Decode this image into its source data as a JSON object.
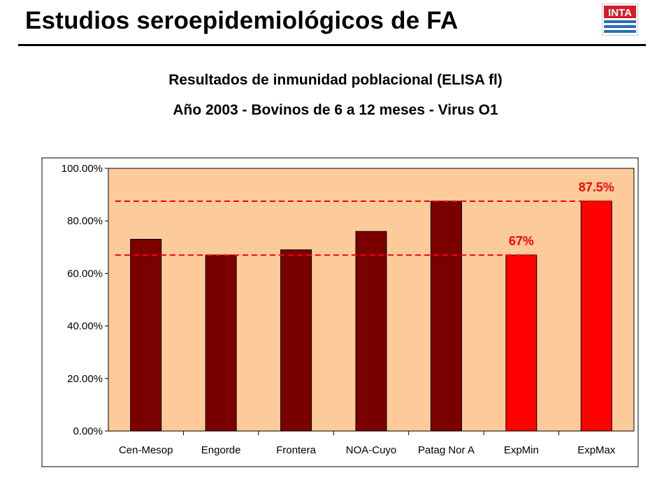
{
  "header": {
    "title": "Estudios seroepidemiológicos de FA",
    "logo_text": "INTA",
    "logo_color": "#d21e2b",
    "logo_stripe_color": "#2a6db5"
  },
  "subtitle": {
    "line1": "Resultados de inmunidad poblacional (ELISA fl)",
    "line2": "Año 2003 - Bovinos de 6 a 12 meses - Virus O1"
  },
  "chart_data": {
    "type": "bar",
    "categories": [
      "Cen-Mesop",
      "Engorde",
      "Frontera",
      "NOA-Cuyo",
      "Patag Nor A",
      "ExpMin",
      "ExpMax"
    ],
    "values": [
      73,
      67,
      69,
      76,
      87.5,
      67,
      87.5
    ],
    "bar_colors": [
      "#7a0000",
      "#7a0000",
      "#7a0000",
      "#7a0000",
      "#7a0000",
      "#ff0000",
      "#ff0000"
    ],
    "ylim": [
      0,
      100
    ],
    "yticks": [
      0,
      20,
      40,
      60,
      80,
      100
    ],
    "ytick_labels": [
      "0.00%",
      "20.00%",
      "40.00%",
      "60.00%",
      "80.00%",
      "100.00%"
    ],
    "plot_background": "#fdcb9a",
    "reference_lines": [
      {
        "value": 67,
        "label": "67%",
        "color": "#ff0000"
      },
      {
        "value": 87.5,
        "label": "87.5%",
        "color": "#ff0000"
      }
    ],
    "grid": false,
    "legend": "none"
  }
}
